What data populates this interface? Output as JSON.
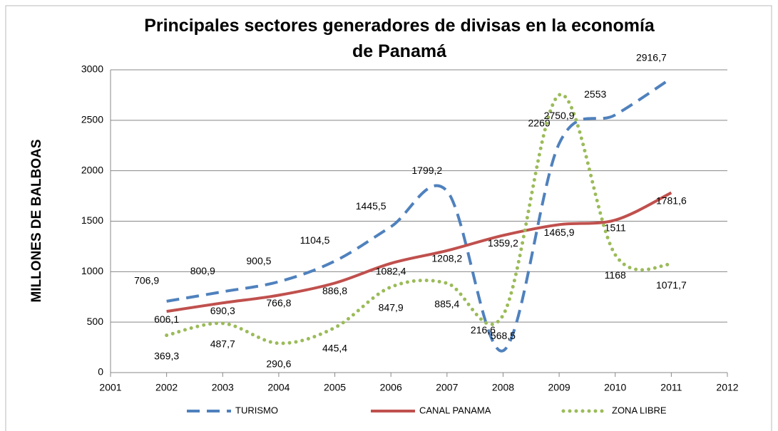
{
  "chart_data": {
    "type": "line",
    "title": "Principales sectores generadores de divisas en la economía de Panamá",
    "y_label": "MILLONES DE BALBOAS",
    "x": [
      2002,
      2003,
      2004,
      2005,
      2006,
      2007,
      2008,
      2009,
      2010,
      2011
    ],
    "xlim": [
      2001,
      2012
    ],
    "xticks": [
      2001,
      2002,
      2003,
      2004,
      2005,
      2006,
      2007,
      2008,
      2009,
      2010,
      2011,
      2012
    ],
    "ylim": [
      0,
      3000
    ],
    "yticks": [
      0,
      500,
      1000,
      1500,
      2000,
      2500,
      3000
    ],
    "grid": true,
    "legend": "bottom",
    "smooth": true,
    "series": [
      {
        "name": "TURISMO",
        "color": "#4f81bd",
        "style": "dashed",
        "values": [
          706.9,
          800.9,
          900.5,
          1104.5,
          1445.5,
          1799.2,
          216.6,
          2269,
          2553,
          2916.7
        ],
        "value_labels": [
          "706,9",
          "800,9",
          "900,5",
          "1104,5",
          "1445,5",
          "1799,2",
          "216,6",
          "2269",
          "2553",
          "2916,7"
        ]
      },
      {
        "name": "CANAL PANAMA",
        "color": "#c0504d",
        "style": "solid",
        "values": [
          606.1,
          690.3,
          766.8,
          886.8,
          1082.4,
          1208.2,
          1359.2,
          1465.9,
          1511,
          1781.6
        ],
        "value_labels": [
          "606,1",
          "690,3",
          "766,8",
          "886,8",
          "1082,4",
          "1208,2",
          "1359,2",
          "1465,9",
          "1511",
          "1781,6"
        ]
      },
      {
        "name": "ZONA LIBRE",
        "color": "#9bbb59",
        "style": "dotted",
        "values": [
          369.3,
          487.7,
          290.6,
          445.4,
          847.9,
          885.4,
          568.5,
          2750.9,
          1168,
          1071.7
        ],
        "value_labels": [
          "369,3",
          "487,7",
          "290,6",
          "445,4",
          "847,9",
          "885,4",
          "568,5",
          "2750,9",
          "1168",
          "1071,7"
        ]
      }
    ]
  }
}
